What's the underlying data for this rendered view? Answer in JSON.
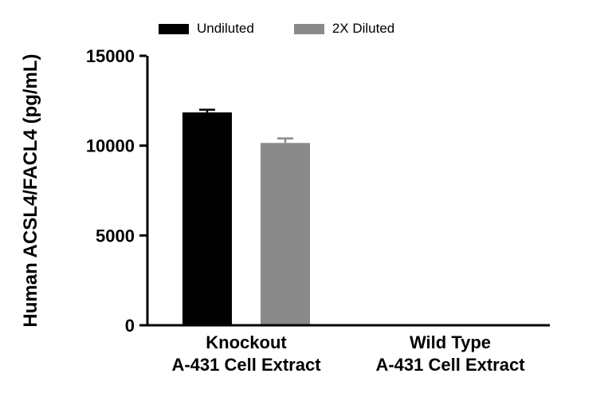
{
  "figure": {
    "background": "#ffffff",
    "axis_color": "#000000"
  },
  "chart_data": {
    "type": "bar",
    "title": "",
    "xlabel": "",
    "ylabel": "Human ACSL4/FACL4 (pg/mL)",
    "ylim": [
      0,
      15000
    ],
    "yticks": [
      0,
      5000,
      10000,
      15000
    ],
    "grid": false,
    "legend_position": "top",
    "error_bars": true,
    "categories": [
      "Knockout\nA-431 Cell Extract",
      "Wild Type\nA-431 Cell Extract"
    ],
    "series": [
      {
        "name": "Undiluted",
        "color": "#000000",
        "values": [
          11850,
          0
        ],
        "errors": [
          150,
          0
        ]
      },
      {
        "name": "2X Diluted",
        "color": "#8a8a8a",
        "values": [
          10150,
          0
        ],
        "errors": [
          250,
          0
        ]
      }
    ]
  }
}
